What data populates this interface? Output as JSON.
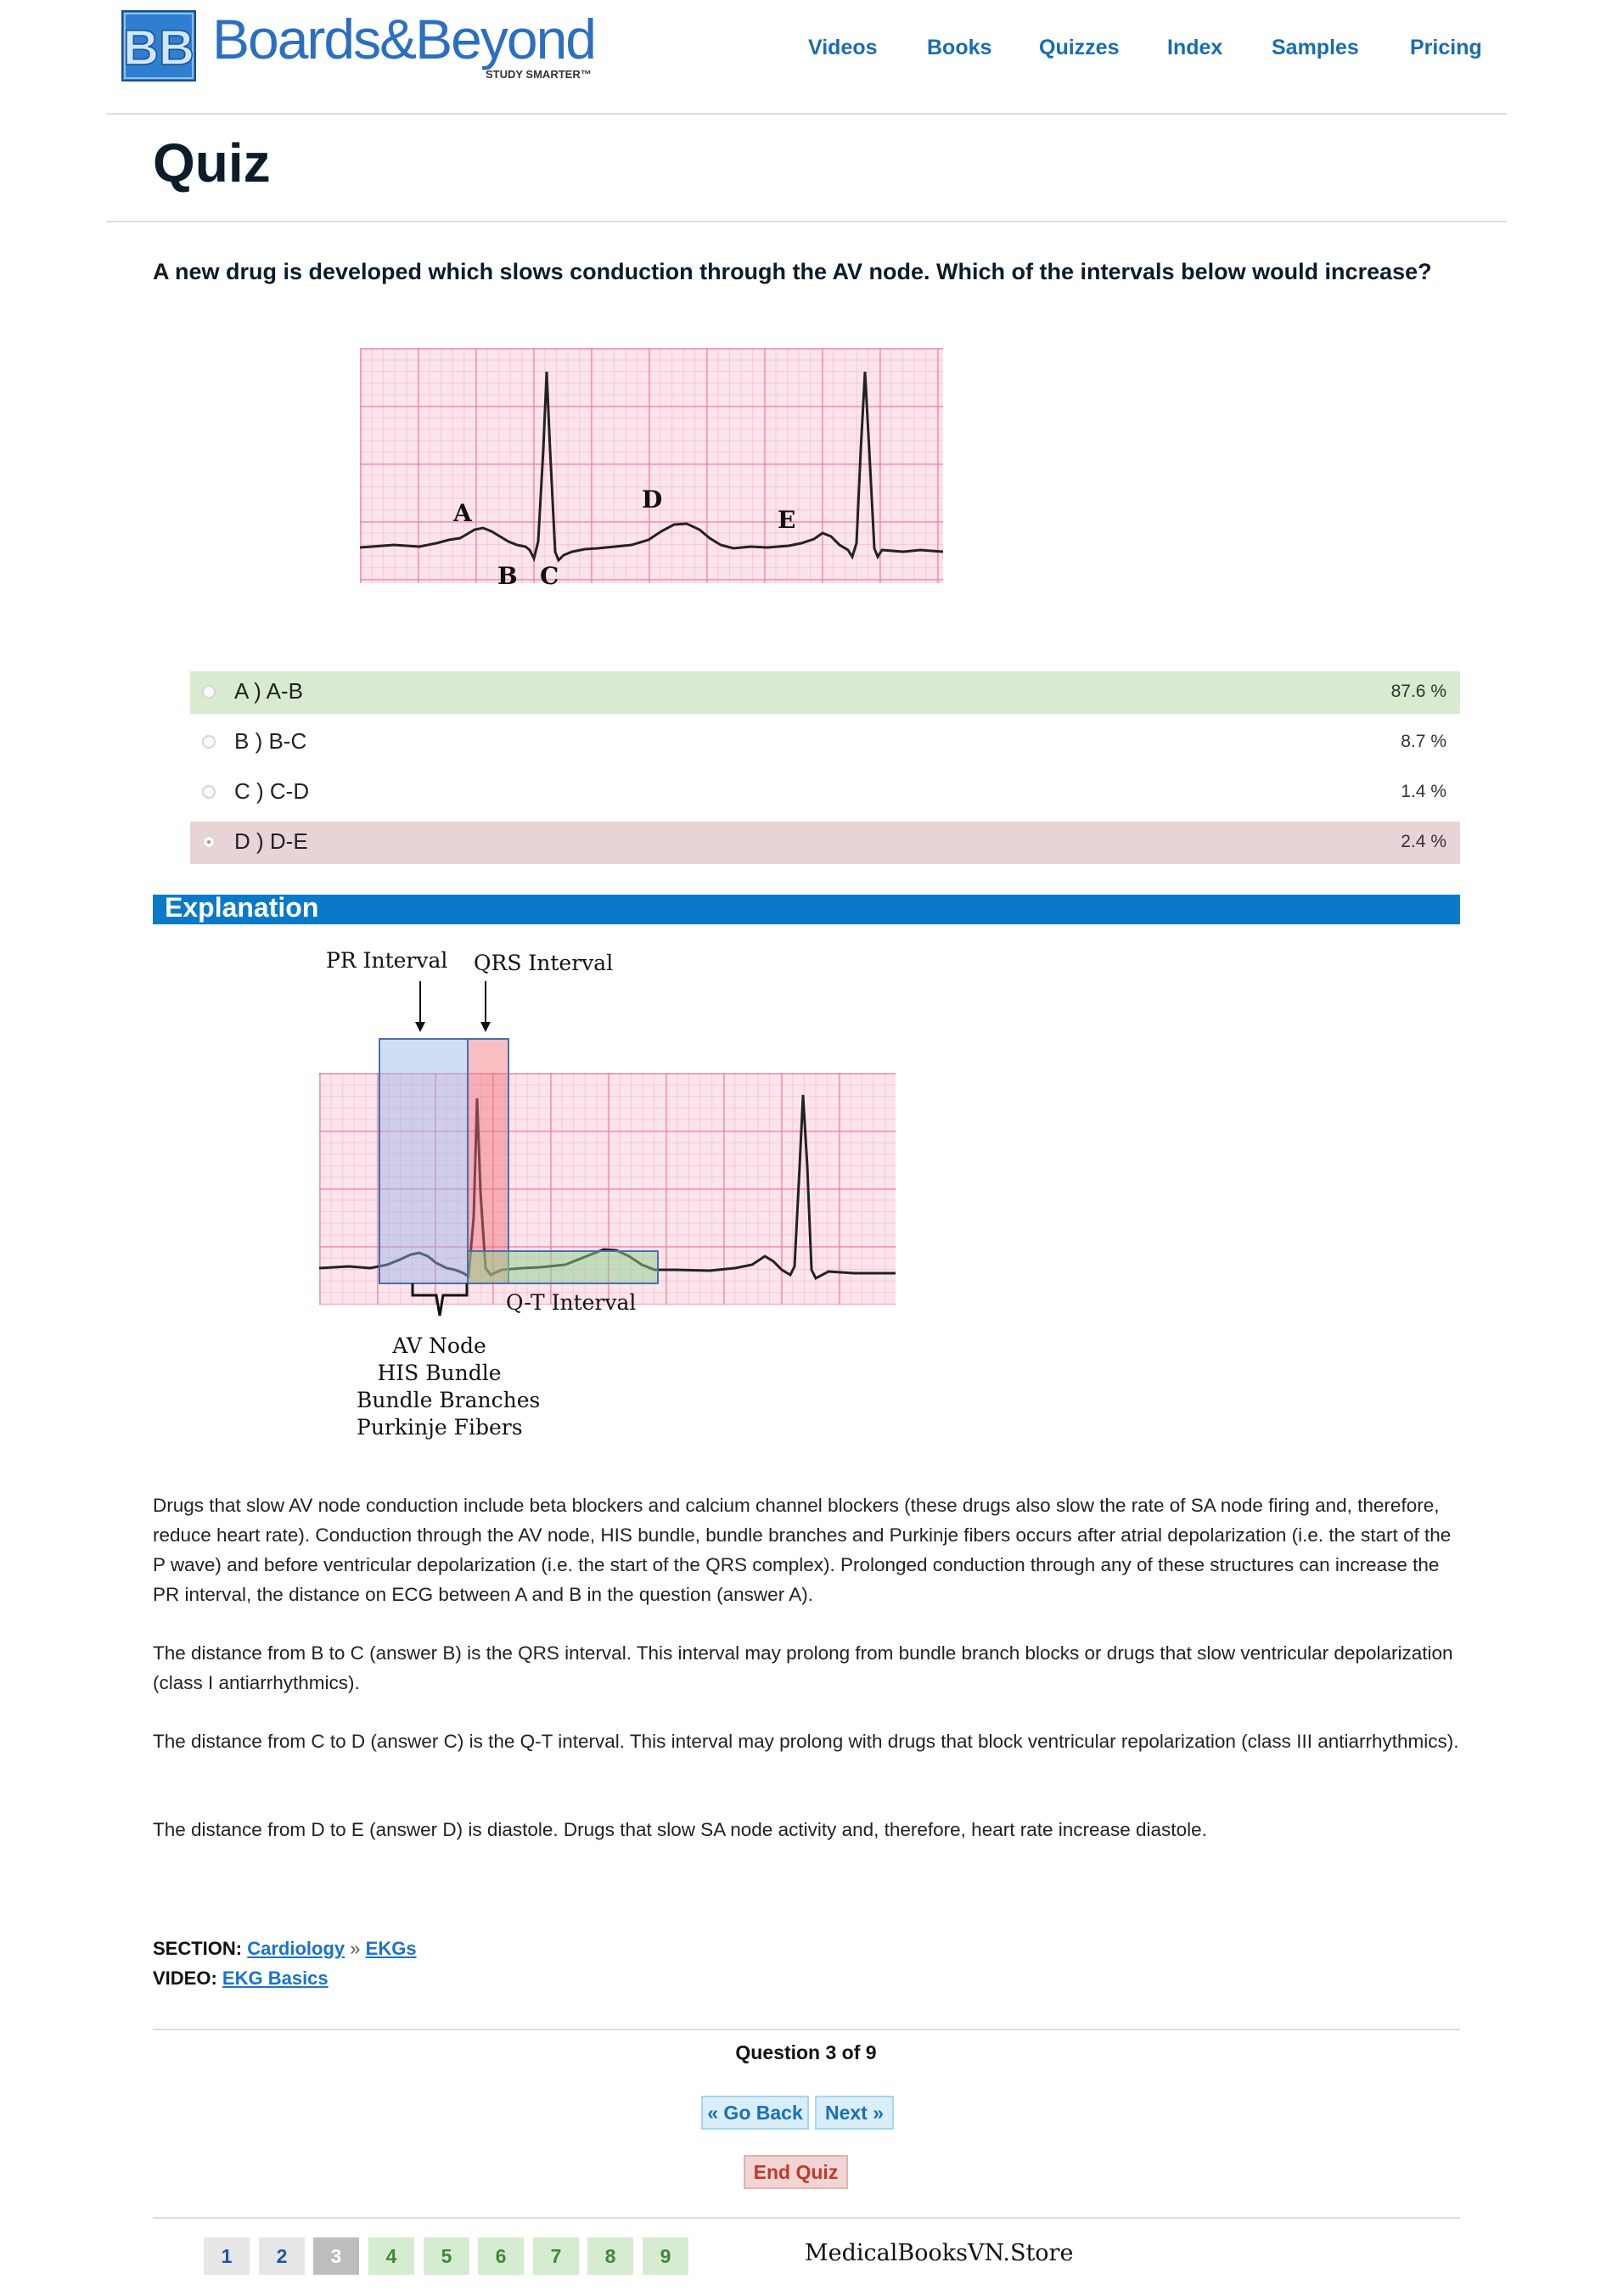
{
  "brand": {
    "logo_letters": "BB",
    "name": "Boards&Beyond",
    "tagline": "STUDY SMARTER™",
    "colors": {
      "primary": "#2a6fc0",
      "nav": "#1a6cb0"
    }
  },
  "nav": {
    "items": [
      {
        "label": "Videos"
      },
      {
        "label": "Books"
      },
      {
        "label": "Quizzes"
      },
      {
        "label": "Index"
      },
      {
        "label": "Samples"
      },
      {
        "label": "Pricing"
      }
    ]
  },
  "page": {
    "title": "Quiz"
  },
  "question": {
    "text": "A new drug is developed which slows conduction through the AV node. Which of the intervals below would increase?",
    "figure_labels": [
      "A",
      "B",
      "C",
      "D",
      "E"
    ]
  },
  "answers": [
    {
      "label": "A ) A-B",
      "percent": "87.6 %",
      "state": "correct",
      "color": "#d8ead0"
    },
    {
      "label": "B ) B-C",
      "percent": "8.7 %",
      "state": "neutral"
    },
    {
      "label": "C ) C-D",
      "percent": "1.4 %",
      "state": "neutral"
    },
    {
      "label": "D ) D-E",
      "percent": "2.4 %",
      "state": "selected-wrong",
      "color": "#e8d3d6"
    }
  ],
  "explanation": {
    "title": "Explanation",
    "bar_color": "#0a7ac8",
    "diagram": {
      "pr_label": "PR Interval",
      "qrs_label": "QRS Interval",
      "qt_label": "Q-T Interval",
      "structures": [
        "AV Node",
        "HIS Bundle",
        "Bundle Branches",
        "Purkinje Fibers"
      ]
    },
    "paragraphs": [
      "Drugs that slow AV node conduction include beta blockers and calcium channel blockers (these drugs also slow the rate of SA node firing and, therefore, reduce heart rate). Conduction through the AV node, HIS bundle, bundle branches and Purkinje fibers occurs after atrial depolarization (i.e. the start of the P wave) and before ventricular depolarization (i.e. the start of the QRS complex). Prolonged conduction through any of these structures can increase the PR interval, the distance on ECG between A and B in the question (answer A).",
      "The distance from B to C (answer B) is the QRS interval. This interval may prolong from bundle branch blocks or drugs that slow ventricular depolarization (class I antiarrhythmics).",
      "The distance from C to D (answer C) is the Q-T interval. This interval may prolong with drugs that block ventricular repolarization (class III antiarrhythmics).",
      "The distance from D to E (answer D) is diastole.  Drugs that slow SA node activity and, therefore, heart rate increase diastole."
    ]
  },
  "meta": {
    "section_label": "SECTION:",
    "section_link": "Cardiology",
    "separator": "»",
    "subsection_link": "EKGs",
    "video_label": "VIDEO:",
    "video_link": "EKG Basics"
  },
  "pager": {
    "counter": "Question 3 of 9",
    "back_label": "« Go Back",
    "next_label": "Next »",
    "end_label": "End Quiz",
    "pages": [
      "1",
      "2",
      "3",
      "4",
      "5",
      "6",
      "7",
      "8",
      "9"
    ],
    "current_page": "3"
  },
  "watermark": "MedicalBooksVN.Store"
}
